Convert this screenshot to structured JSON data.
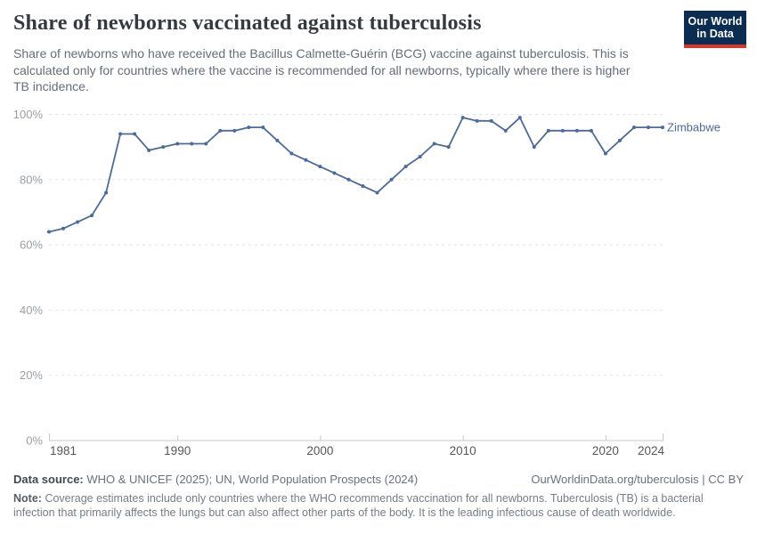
{
  "header": {
    "title": "Share of newborns vaccinated against tuberculosis",
    "subtitle": "Share of newborns who have received the Bacillus Calmette-Guérin (BCG) vaccine against tuberculosis. This is calculated only for countries where the vaccine is recommended for all newborns, typically where there is higher TB incidence.",
    "logo": {
      "line1": "Our World",
      "line2": "in Data",
      "bg": "#0c2d52",
      "stripe": "#d8392f"
    }
  },
  "chart_data": {
    "type": "line",
    "title": "Share of newborns vaccinated against tuberculosis",
    "entity_label": "Zimbabwe",
    "x": [
      1981,
      1982,
      1983,
      1984,
      1985,
      1986,
      1987,
      1988,
      1989,
      1990,
      1991,
      1992,
      1993,
      1994,
      1995,
      1996,
      1997,
      1998,
      1999,
      2000,
      2001,
      2002,
      2003,
      2004,
      2005,
      2006,
      2007,
      2008,
      2009,
      2010,
      2011,
      2012,
      2013,
      2014,
      2015,
      2016,
      2017,
      2018,
      2019,
      2020,
      2021,
      2022,
      2023,
      2024
    ],
    "series": [
      {
        "name": "Zimbabwe",
        "color": "#4c6a9d",
        "values": [
          64,
          65,
          67,
          69,
          76,
          94,
          94,
          89,
          90,
          91,
          91,
          91,
          95,
          95,
          96,
          96,
          92,
          88,
          86,
          84,
          82,
          80,
          78,
          76,
          80,
          84,
          87,
          91,
          90,
          99,
          98,
          98,
          95,
          99,
          90,
          95,
          95,
          95,
          95,
          88,
          92,
          96,
          96,
          96
        ]
      }
    ],
    "xlim": [
      1981,
      2024
    ],
    "ylim": [
      0,
      100
    ],
    "x_ticks": [
      1981,
      1990,
      2000,
      2010,
      2020,
      2024
    ],
    "y_ticks": [
      0,
      20,
      40,
      60,
      80,
      100
    ],
    "y_suffix": "%",
    "grid": "horizontal-dashed",
    "legend": "inline-end-label",
    "colors": {
      "line": "#4c6a9d",
      "gridline": "#e2e2e2",
      "axis": "#c8c8c8",
      "y_tick_label": "#9a9fa3",
      "x_tick_label": "#575757"
    }
  },
  "footer": {
    "data_source_label": "Data source:",
    "data_source_value": "WHO & UNICEF (2025); UN, World Population Prospects (2024)",
    "url_license": "OurWorldinData.org/tuberculosis | CC BY",
    "note_label": "Note:",
    "note_value": "Coverage estimates include only countries where the WHO recommends vaccination for all newborns. Tuberculosis (TB) is a bacterial infection that primarily affects the lungs but can also affect other parts of the body. It is the leading infectious cause of death worldwide."
  }
}
